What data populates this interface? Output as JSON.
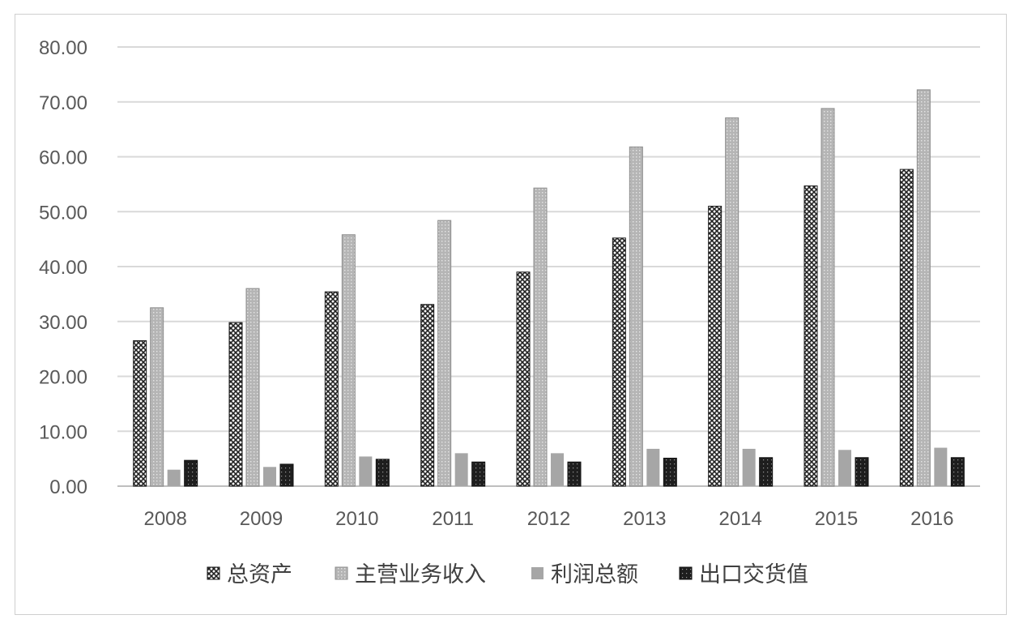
{
  "chart_data": {
    "type": "bar",
    "categories": [
      "2008",
      "2009",
      "2010",
      "2011",
      "2012",
      "2013",
      "2014",
      "2015",
      "2016"
    ],
    "series": [
      {
        "name": "总资产",
        "values": [
          26.5,
          29.8,
          35.4,
          33.1,
          39.0,
          45.2,
          51.0,
          54.7,
          57.7
        ]
      },
      {
        "name": "主营业务收入",
        "values": [
          32.5,
          36.0,
          45.8,
          48.4,
          54.3,
          61.8,
          67.1,
          68.8,
          72.2
        ]
      },
      {
        "name": "利润总额",
        "values": [
          3.0,
          3.5,
          5.4,
          6.0,
          6.0,
          6.8,
          6.8,
          6.6,
          7.0
        ]
      },
      {
        "name": "出口交货值",
        "values": [
          4.7,
          4.0,
          4.9,
          4.4,
          4.4,
          5.1,
          5.2,
          5.2,
          5.2
        ]
      }
    ],
    "ylim": [
      0,
      80
    ],
    "yticks": [
      "0.00",
      "10.00",
      "20.00",
      "30.00",
      "40.00",
      "50.00",
      "60.00",
      "70.00",
      "80.00"
    ],
    "grid": true,
    "legend_position": "bottom",
    "title": "",
    "xlabel": "",
    "ylabel": ""
  }
}
